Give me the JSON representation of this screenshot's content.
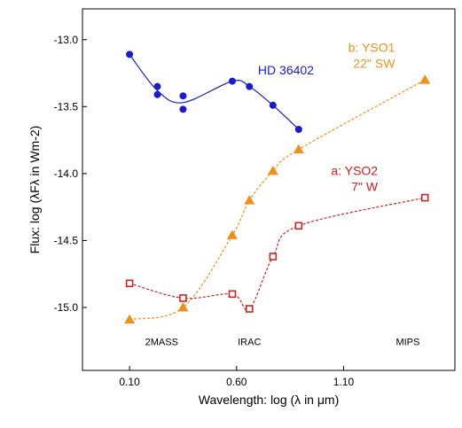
{
  "chart_data": {
    "type": "scatter",
    "title": "",
    "xlabel": "Wavelength: log (λ in μm)",
    "ylabel": "Flux: log (λFλ in Wm-2)",
    "xlim": [
      -0.12,
      1.62
    ],
    "ylim": [
      -15.47,
      -12.77
    ],
    "x_ticks": [
      0.1,
      0.6,
      1.1
    ],
    "x_tick_labels": [
      "0.10",
      "0.60",
      "1.10"
    ],
    "y_ticks": [
      -13.0,
      -13.5,
      -14.0,
      -14.5,
      -15.0
    ],
    "y_tick_labels": [
      "-13.0",
      "-13.5",
      "-14.0",
      "-14.5",
      "-15.0"
    ],
    "band_labels": [
      {
        "text": "2MASS",
        "x": 0.25,
        "y": -15.28
      },
      {
        "text": "IRAC",
        "x": 0.66,
        "y": -15.28
      },
      {
        "text": "MIPS",
        "x": 1.4,
        "y": -15.28
      }
    ],
    "series": [
      {
        "name": "HD 36402",
        "label_lines": [
          "HD 36402"
        ],
        "label_pos": {
          "x": 0.7,
          "y": -13.26
        },
        "color": "#1a1ad0",
        "marker": "filled-circle",
        "line": "solid-smooth",
        "x": [
          0.1,
          0.23,
          0.23,
          0.35,
          0.35,
          0.58,
          0.66,
          0.77,
          0.89
        ],
        "y": [
          -13.11,
          -13.35,
          -13.41,
          -13.42,
          -13.52,
          -13.31,
          -13.35,
          -13.49,
          -13.67
        ]
      },
      {
        "name": "b: YSO1 22\" SW",
        "label_lines": [
          "b: YSO1",
          "22\" SW"
        ],
        "label_pos": {
          "x": 1.34,
          "y": -13.09
        },
        "color": "#f0901a",
        "marker": "filled-triangle",
        "line": "dotted",
        "x": [
          0.1,
          0.35,
          0.58,
          0.66,
          0.77,
          0.89,
          1.48
        ],
        "y": [
          -15.09,
          -15.0,
          -14.46,
          -14.2,
          -13.98,
          -13.82,
          -13.3
        ]
      },
      {
        "name": "a: YSO2 7\" W",
        "label_lines": [
          "a: YSO2",
          "7\" W"
        ],
        "label_pos": {
          "x": 1.26,
          "y": -14.01
        },
        "color": "#d42020",
        "marker": "open-square",
        "line": "dotted",
        "x": [
          0.1,
          0.35,
          0.58,
          0.66,
          0.77,
          0.89,
          1.48
        ],
        "y": [
          -14.82,
          -14.93,
          -14.9,
          -15.01,
          -14.62,
          -14.39,
          -14.18
        ]
      }
    ]
  }
}
